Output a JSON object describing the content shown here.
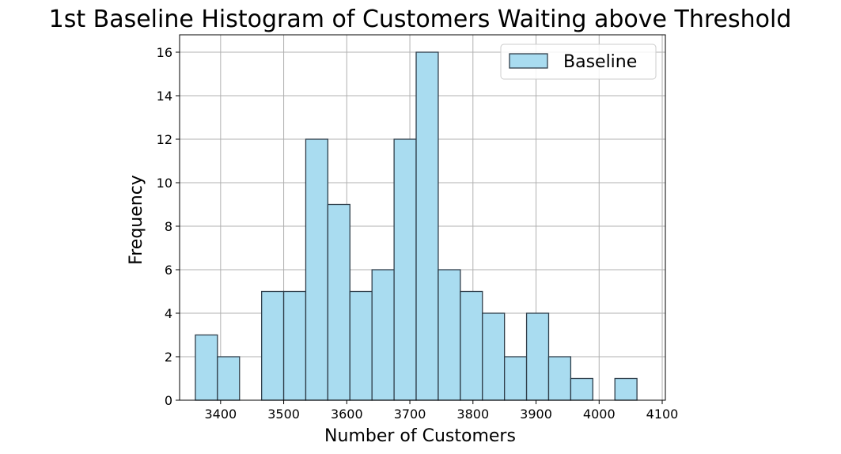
{
  "chart_data": {
    "type": "bar",
    "title": "1st Baseline Histogram of Customers Waiting above Threshold",
    "xlabel": "Number of Customers",
    "ylabel": "Frequency",
    "xlim": [
      3335,
      4105
    ],
    "ylim": [
      0,
      16.8
    ],
    "xticks": [
      3400,
      3500,
      3600,
      3700,
      3800,
      3900,
      4000,
      4100
    ],
    "yticks": [
      0,
      2,
      4,
      6,
      8,
      10,
      12,
      14,
      16
    ],
    "grid": true,
    "legend": {
      "position": "top-right",
      "entries": [
        "Baseline"
      ]
    },
    "series": [
      {
        "name": "Baseline",
        "bin_edges": [
          3360,
          3395,
          3430,
          3465,
          3500,
          3535,
          3570,
          3605,
          3640,
          3675,
          3710,
          3745,
          3780,
          3815,
          3850,
          3885,
          3920,
          3955,
          3990,
          4025,
          4060
        ],
        "counts": [
          3,
          2,
          0,
          5,
          5,
          12,
          9,
          5,
          6,
          12,
          16,
          6,
          5,
          4,
          2,
          4,
          2,
          1,
          0,
          1
        ]
      }
    ],
    "colors": {
      "bar_fill": "#a9dcf0",
      "bar_edge": "#2f3e4a",
      "grid": "#b0b0b0",
      "axis": "#000000"
    }
  }
}
